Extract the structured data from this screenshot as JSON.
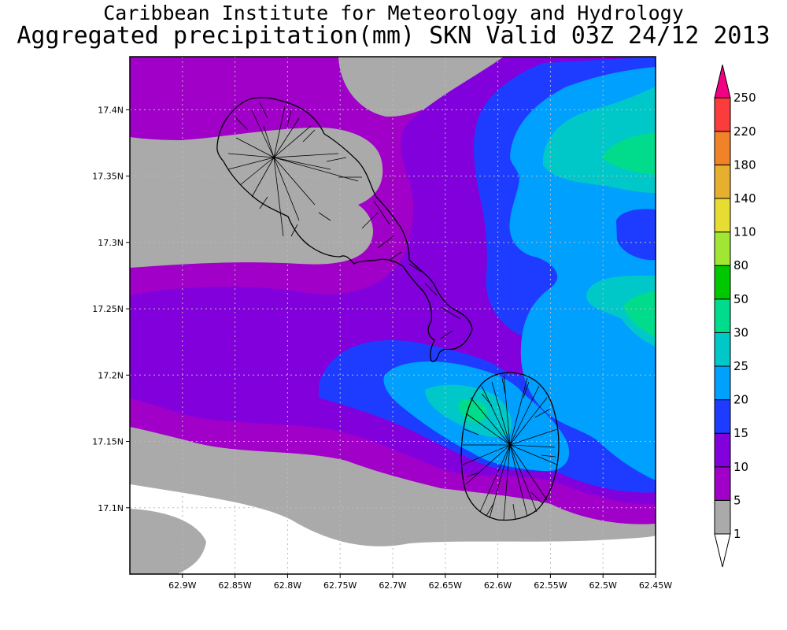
{
  "title": {
    "line1": "Caribbean Institute for Meteorology and Hydrology",
    "line2": "Aggregated precipitation(mm) SKN Valid 03Z 24/12 2013"
  },
  "map": {
    "x_ticks": [
      "62.9W",
      "62.85W",
      "62.8W",
      "62.75W",
      "62.7W",
      "62.65W",
      "62.6W",
      "62.55W",
      "62.5W",
      "62.45W"
    ],
    "y_ticks": [
      "17.4N",
      "17.35N",
      "17.3N",
      "17.25N",
      "17.2N",
      "17.15N",
      "17.1N"
    ],
    "lon_range": [
      -62.95,
      -62.45
    ],
    "lat_range": [
      17.05,
      17.44
    ],
    "islands": [
      "St. Kitts",
      "Nevis"
    ]
  },
  "colorbar": {
    "levels": [
      "1",
      "5",
      "10",
      "15",
      "20",
      "25",
      "30",
      "50",
      "80",
      "110",
      "140",
      "180",
      "220",
      "250"
    ],
    "colors": [
      "#ffffff",
      "#aaaaaa",
      "#a000c8",
      "#8200dc",
      "#1e3cff",
      "#00a0ff",
      "#00c8c8",
      "#00dc8c",
      "#00c800",
      "#a0e632",
      "#e6dc32",
      "#e6af2d",
      "#f08228",
      "#fa3c3c",
      "#f00082"
    ]
  }
}
